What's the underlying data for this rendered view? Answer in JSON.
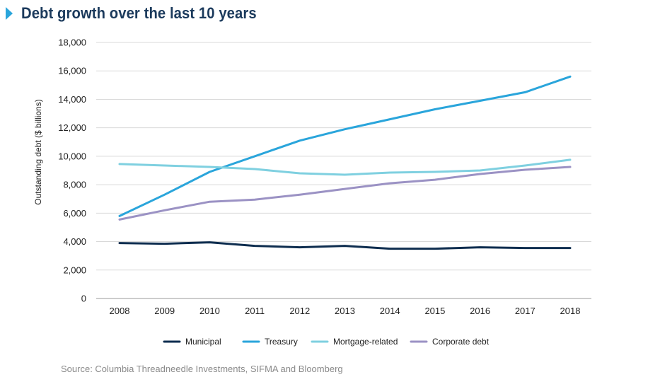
{
  "header": {
    "title": "Debt growth over the last 10 years"
  },
  "source": "Source: Columbia Threadneedle Investments, SIFMA and Bloomberg",
  "chart_data": {
    "type": "line",
    "title": "Debt growth over the last 10 years",
    "xlabel": "",
    "ylabel": "Outstanding debt ($ billions)",
    "ylim": [
      0,
      18000
    ],
    "yticks": [
      0,
      2000,
      4000,
      6000,
      8000,
      10000,
      12000,
      14000,
      16000,
      18000
    ],
    "ytick_labels": [
      "0",
      "2,000",
      "4,000",
      "6,000",
      "8,000",
      "10,000",
      "12,000",
      "14,000",
      "16,000",
      "18,000"
    ],
    "grid": "horizontal",
    "legend": "bottom",
    "x": [
      "2008",
      "2009",
      "2010",
      "2011",
      "2012",
      "2013",
      "2014",
      "2015",
      "2016",
      "2017",
      "2018"
    ],
    "series": [
      {
        "name": "Municipal",
        "color": "#0e2d4f",
        "values": [
          3900,
          3850,
          3950,
          3700,
          3600,
          3700,
          3500,
          3500,
          3600,
          3550,
          3550
        ]
      },
      {
        "name": "Treasury",
        "color": "#2aa5db",
        "values": [
          5800,
          7300,
          8900,
          10000,
          11100,
          11900,
          12600,
          13300,
          13900,
          14500,
          15600
        ]
      },
      {
        "name": "Mortgage-related",
        "color": "#7fd0e0",
        "values": [
          9450,
          9350,
          9250,
          9100,
          8800,
          8700,
          8850,
          8900,
          9000,
          9350,
          9750
        ]
      },
      {
        "name": "Corporate debt",
        "color": "#9b92c4",
        "values": [
          5550,
          6200,
          6800,
          6950,
          7300,
          7700,
          8100,
          8350,
          8750,
          9050,
          9250
        ]
      }
    ]
  }
}
